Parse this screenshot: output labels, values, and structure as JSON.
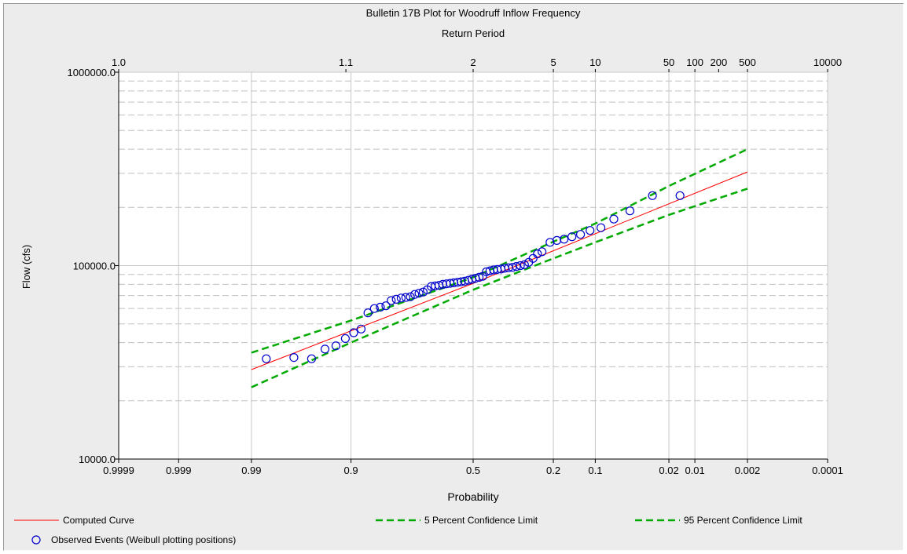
{
  "chart_data": {
    "type": "scatter",
    "title": "Bulletin 17B Plot for Woodruff Inflow Frequency",
    "subtitle": "Return Period",
    "xlabel": "Probability",
    "ylabel": "Flow (cfs)",
    "xscale": "normal probability (exceedance)",
    "yscale": "log",
    "ylim": [
      10000,
      1000000
    ],
    "x_ticks": [
      {
        "p": 0.9999,
        "label": "0.9999"
      },
      {
        "p": 0.999,
        "label": "0.999"
      },
      {
        "p": 0.99,
        "label": "0.99"
      },
      {
        "p": 0.9,
        "label": "0.9"
      },
      {
        "p": 0.5,
        "label": "0.5"
      },
      {
        "p": 0.2,
        "label": "0.2"
      },
      {
        "p": 0.1,
        "label": "0.1"
      },
      {
        "p": 0.02,
        "label": "0.02"
      },
      {
        "p": 0.01,
        "label": "0.01"
      },
      {
        "p": 0.002,
        "label": "0.002"
      },
      {
        "p": 0.0001,
        "label": "0.0001"
      }
    ],
    "return_period_ticks": [
      {
        "p": 0.9999,
        "label": "1.0"
      },
      {
        "p": 0.90909,
        "label": "1.1"
      },
      {
        "p": 0.5,
        "label": "2"
      },
      {
        "p": 0.2,
        "label": "5"
      },
      {
        "p": 0.1,
        "label": "10"
      },
      {
        "p": 0.02,
        "label": "50"
      },
      {
        "p": 0.01,
        "label": "100"
      },
      {
        "p": 0.005,
        "label": "200"
      },
      {
        "p": 0.002,
        "label": "500"
      },
      {
        "p": 0.0001,
        "label": "10000"
      }
    ],
    "y_ticks": [
      {
        "v": 10000,
        "label": "10000.0"
      },
      {
        "v": 100000,
        "label": "100000.0"
      },
      {
        "v": 1000000,
        "label": "1000000.0"
      }
    ],
    "grid": true,
    "legend_position": "bottom",
    "series": [
      {
        "name": "Computed Curve",
        "kind": "line",
        "color": "#ff0000",
        "dash": "solid",
        "points": [
          [
            0.99,
            29000
          ],
          [
            0.5,
            81000
          ],
          [
            0.002,
            305000
          ]
        ]
      },
      {
        "name": "5 Percent Confidence Limit",
        "kind": "line",
        "color": "#00aa00",
        "dash": "dashed",
        "points": [
          [
            0.99,
            35500
          ],
          [
            0.9,
            52000
          ],
          [
            0.5,
            87000
          ],
          [
            0.2,
            133000
          ],
          [
            0.1,
            165000
          ],
          [
            0.02,
            258000
          ],
          [
            0.002,
            400000
          ]
        ]
      },
      {
        "name": "95 Percent Confidence Limit",
        "kind": "line",
        "color": "#00aa00",
        "dash": "dashed",
        "points": [
          [
            0.99,
            23500
          ],
          [
            0.9,
            40000
          ],
          [
            0.5,
            75000
          ],
          [
            0.2,
            109000
          ],
          [
            0.1,
            132000
          ],
          [
            0.02,
            183000
          ],
          [
            0.002,
            250000
          ]
        ]
      },
      {
        "name": "Observed Events (Weibull plotting positions)",
        "kind": "scatter",
        "color": "#0000cc",
        "marker": "circle",
        "points": [
          [
            0.985,
            33000
          ],
          [
            0.97,
            33500
          ],
          [
            0.955,
            33000
          ],
          [
            0.94,
            37000
          ],
          [
            0.925,
            38500
          ],
          [
            0.91,
            42000
          ],
          [
            0.895,
            45000
          ],
          [
            0.88,
            47000
          ],
          [
            0.865,
            57000
          ],
          [
            0.85,
            60000
          ],
          [
            0.835,
            61000
          ],
          [
            0.82,
            62000
          ],
          [
            0.805,
            66000
          ],
          [
            0.79,
            67000
          ],
          [
            0.775,
            68000
          ],
          [
            0.76,
            68500
          ],
          [
            0.745,
            69000
          ],
          [
            0.73,
            71000
          ],
          [
            0.715,
            72000
          ],
          [
            0.7,
            73000
          ],
          [
            0.685,
            75000
          ],
          [
            0.67,
            78000
          ],
          [
            0.655,
            78500
          ],
          [
            0.64,
            79000
          ],
          [
            0.625,
            80000
          ],
          [
            0.61,
            80500
          ],
          [
            0.595,
            81000
          ],
          [
            0.58,
            81500
          ],
          [
            0.565,
            82000
          ],
          [
            0.55,
            82500
          ],
          [
            0.535,
            83000
          ],
          [
            0.52,
            84000
          ],
          [
            0.505,
            85000
          ],
          [
            0.49,
            86000
          ],
          [
            0.475,
            87000
          ],
          [
            0.46,
            88000
          ],
          [
            0.445,
            93000
          ],
          [
            0.43,
            94000
          ],
          [
            0.415,
            95000
          ],
          [
            0.4,
            95500
          ],
          [
            0.385,
            96000
          ],
          [
            0.37,
            97000
          ],
          [
            0.355,
            97500
          ],
          [
            0.34,
            98000
          ],
          [
            0.325,
            99000
          ],
          [
            0.31,
            100000
          ],
          [
            0.295,
            101000
          ],
          [
            0.28,
            104000
          ],
          [
            0.265,
            109000
          ],
          [
            0.25,
            115000
          ],
          [
            0.235,
            118000
          ],
          [
            0.21,
            132000
          ],
          [
            0.19,
            135000
          ],
          [
            0.17,
            137000
          ],
          [
            0.15,
            141000
          ],
          [
            0.13,
            145000
          ],
          [
            0.11,
            152000
          ],
          [
            0.09,
            157000
          ],
          [
            0.07,
            174000
          ],
          [
            0.05,
            192000
          ],
          [
            0.03,
            230000
          ],
          [
            0.015,
            230000
          ]
        ]
      }
    ]
  }
}
